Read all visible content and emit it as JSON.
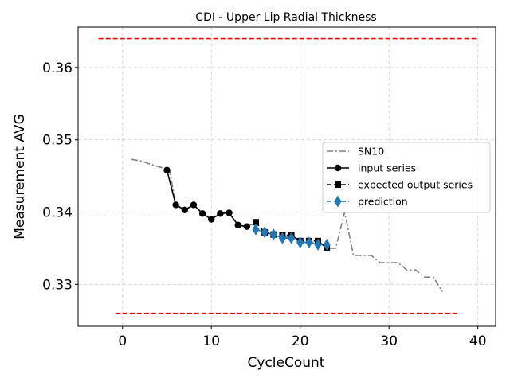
{
  "chart_data": {
    "type": "line",
    "title": "CDI - Upper Lip Radial Thickness",
    "xlabel": "CycleCount",
    "ylabel": "Measurement AVG",
    "xlim": [
      -5,
      42
    ],
    "ylim": [
      0.3242,
      0.3656
    ],
    "xticks": [
      0,
      10,
      20,
      30,
      40
    ],
    "yticks": [
      0.33,
      0.34,
      0.35,
      0.36
    ],
    "xtick_labels": [
      "0",
      "10",
      "20",
      "30",
      "40"
    ],
    "ytick_labels": [
      "0.33",
      "0.34",
      "0.35",
      "0.36"
    ],
    "grid": true,
    "legend_position": "center-right",
    "limit_lines": [
      {
        "y": 0.364,
        "x": [
          -2.7,
          39.8
        ],
        "color": "#ff0000"
      },
      {
        "y": 0.326,
        "x": [
          -0.8,
          37.8
        ],
        "color": "#ff0000"
      }
    ],
    "series": [
      {
        "name": "SN10",
        "color": "#808080",
        "style": "dashdot",
        "marker": "none",
        "x": [
          1,
          2,
          3,
          4,
          5,
          5.3,
          6,
          7,
          8,
          9,
          10,
          11,
          12,
          13,
          14,
          15,
          16,
          17,
          18,
          19,
          20,
          21,
          22,
          23,
          24,
          25,
          26,
          27,
          28,
          29,
          30,
          31,
          32,
          33,
          34,
          35,
          36
        ],
        "y": [
          0.3473,
          0.3471,
          0.3467,
          0.3463,
          0.346,
          0.3458,
          0.341,
          0.3403,
          0.341,
          0.3398,
          0.339,
          0.3398,
          0.3399,
          0.3382,
          0.338,
          0.3385,
          0.3372,
          0.3368,
          0.3365,
          0.3366,
          0.336,
          0.3357,
          0.336,
          0.335,
          0.335,
          0.34,
          0.334,
          0.334,
          0.334,
          0.333,
          0.333,
          0.333,
          0.332,
          0.332,
          0.331,
          0.331,
          0.329
        ]
      },
      {
        "name": "input series",
        "color": "#000000",
        "style": "solid",
        "marker": "circle",
        "x": [
          5,
          6,
          7,
          8,
          9,
          10,
          11,
          12,
          13,
          14
        ],
        "y": [
          0.3458,
          0.341,
          0.3403,
          0.341,
          0.3398,
          0.339,
          0.3398,
          0.3399,
          0.3382,
          0.338
        ]
      },
      {
        "name": "expected output series",
        "color": "#000000",
        "style": "dashed",
        "marker": "square",
        "x": [
          15,
          16,
          17,
          18,
          19,
          20,
          21,
          22,
          23
        ],
        "y": [
          0.3386,
          0.3372,
          0.3369,
          0.3368,
          0.3368,
          0.336,
          0.336,
          0.336,
          0.335
        ]
      },
      {
        "name": "prediction",
        "color": "#1f77b4",
        "style": "dashed",
        "marker": "diamond",
        "x": [
          15,
          16,
          17,
          18,
          19,
          20,
          21,
          22,
          23
        ],
        "y": [
          0.3376,
          0.3372,
          0.3369,
          0.3364,
          0.3364,
          0.3358,
          0.3358,
          0.3355,
          0.3355
        ]
      }
    ]
  }
}
